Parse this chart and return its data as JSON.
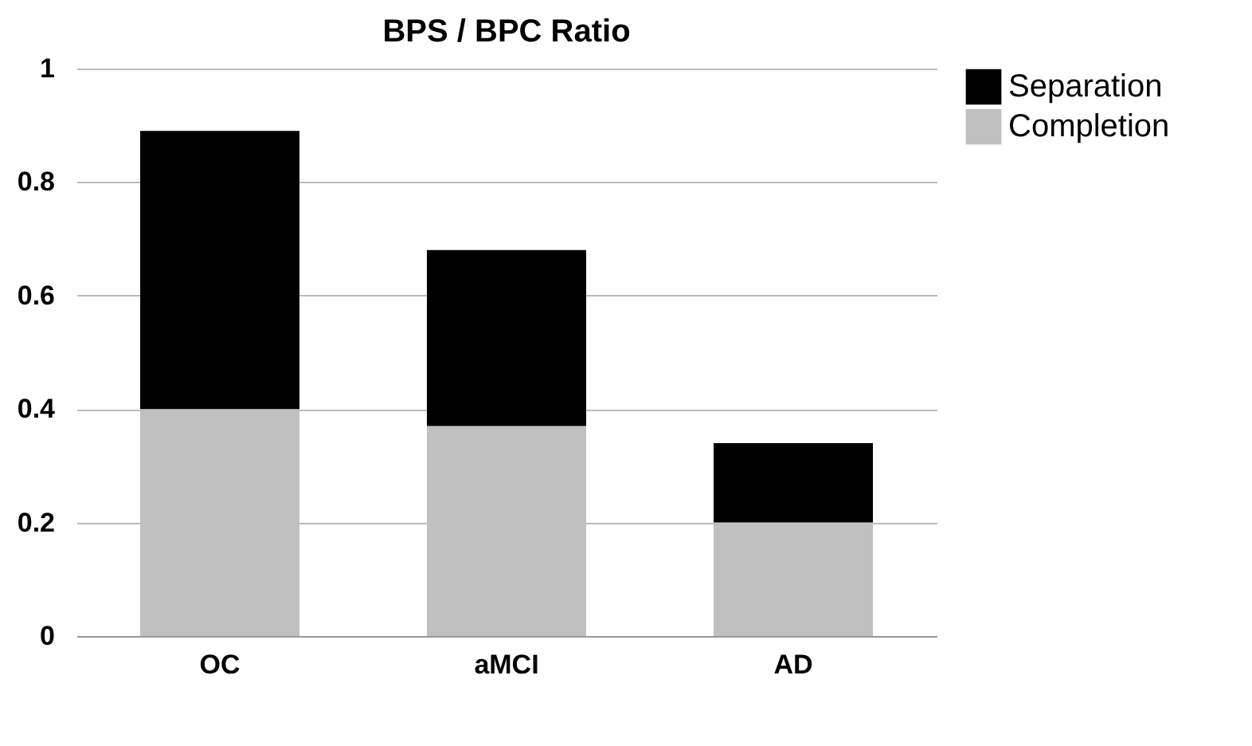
{
  "chart_data": {
    "type": "bar",
    "title": "BPS / BPC Ratio",
    "categories": [
      "OC",
      "aMCI",
      "AD"
    ],
    "stacked": true,
    "series": [
      {
        "name": "Completion",
        "color": "#c0c0c0",
        "values": [
          0.4,
          0.37,
          0.2
        ]
      },
      {
        "name": "Separation",
        "color": "#000000",
        "values": [
          0.49,
          0.31,
          0.14
        ]
      }
    ],
    "ylim": [
      0,
      1
    ],
    "yticks": [
      0,
      0.2,
      0.4,
      0.6,
      0.8,
      1
    ],
    "grid": "y",
    "legend": "right"
  }
}
